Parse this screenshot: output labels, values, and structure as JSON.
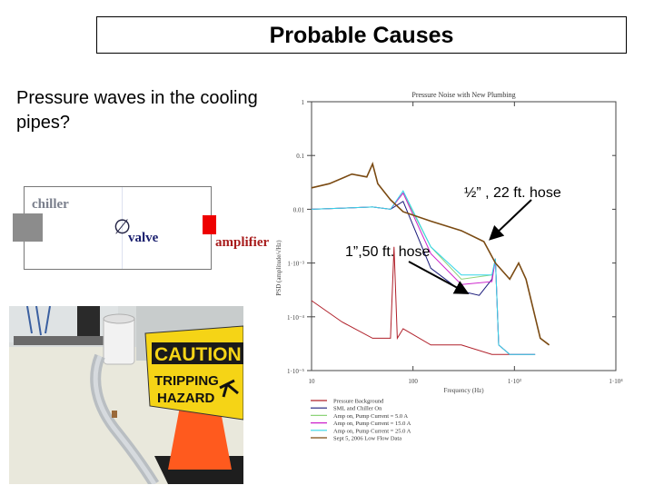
{
  "slide": {
    "title": "Probable Causes",
    "subtitle": "Pressure waves in the cooling pipes?"
  },
  "diagram": {
    "chiller_label": "chiller",
    "valve_label": "valve",
    "valve_symbol": "∅",
    "amplifier_label": "amplifier",
    "colors": {
      "chiller": "#8c8c8c",
      "amplifier": "#ee0000"
    }
  },
  "photo": {
    "sign_header": "CAUTION",
    "sign_line1": "TRIPPING",
    "sign_line2": "HAZARD"
  },
  "annotations": {
    "half_inch": "½” , 22 ft. hose",
    "one_inch": "1”,50 ft. hose"
  },
  "chart_data": {
    "type": "line",
    "title": "Pressure Noise with New Plumbing",
    "xlabel": "Frequency (Hz)",
    "ylabel": "PSD (amplitude/√Hz)",
    "xscale": "log",
    "yscale": "log",
    "xlim": [
      10,
      10000
    ],
    "ylim": [
      1e-05,
      1
    ],
    "x_ticks": [
      "10",
      "100",
      "1·10³",
      "1·10⁴"
    ],
    "y_ticks": [
      "1",
      "0.1",
      "0.01",
      "1·10⁻³",
      "1·10⁻⁴",
      "1·10⁻⁵"
    ],
    "legend_position": "below",
    "series": [
      {
        "name": "Pressure Background",
        "color": "#b0202a",
        "x": [
          10,
          20,
          40,
          60,
          65,
          70,
          80,
          150,
          300,
          600,
          900
        ],
        "y": [
          0.0002,
          8e-05,
          4e-05,
          4e-05,
          0.002,
          4e-05,
          6e-05,
          3e-05,
          3e-05,
          2e-05,
          2e-05
        ]
      },
      {
        "name": "SML and Chiller On",
        "color": "#1a1a7a",
        "x": [
          10,
          40,
          60,
          80,
          150,
          300,
          450,
          600,
          650,
          700,
          900,
          1600
        ],
        "y": [
          0.01,
          0.011,
          0.01,
          0.014,
          0.0008,
          0.0003,
          0.00025,
          0.0005,
          0.0012,
          3e-05,
          2e-05,
          2e-05
        ]
      },
      {
        "name": "Amp on, Pump Current = 5.0 A",
        "color": "#8ed47a",
        "x": [
          10,
          40,
          60,
          80,
          150,
          300,
          600,
          650,
          700,
          900,
          1600
        ],
        "y": [
          0.01,
          0.011,
          0.01,
          0.02,
          0.002,
          0.0005,
          0.0006,
          0.0012,
          3e-05,
          2e-05,
          2e-05
        ]
      },
      {
        "name": "Amp on, Pump Current = 15.0 A",
        "color": "#cc22cc",
        "x": [
          10,
          40,
          60,
          80,
          150,
          300,
          600,
          650,
          700,
          900,
          1600
        ],
        "y": [
          0.01,
          0.011,
          0.01,
          0.02,
          0.0015,
          0.0004,
          0.00045,
          0.0012,
          3e-05,
          2e-05,
          2e-05
        ]
      },
      {
        "name": "Amp on, Pump Current = 25.0 A",
        "color": "#33d6e8",
        "x": [
          10,
          40,
          60,
          80,
          150,
          300,
          600,
          650,
          700,
          900,
          1600
        ],
        "y": [
          0.01,
          0.011,
          0.01,
          0.022,
          0.002,
          0.0006,
          0.0006,
          0.0012,
          3e-05,
          2e-05,
          2e-05
        ]
      },
      {
        "name": "Sept 5, 2006 Low Flow Data",
        "color": "#7a4a12",
        "x": [
          10,
          15,
          25,
          35,
          40,
          45,
          60,
          80,
          150,
          300,
          500,
          650,
          900,
          1100,
          1300,
          1800,
          2200
        ],
        "y": [
          0.025,
          0.03,
          0.045,
          0.04,
          0.07,
          0.03,
          0.015,
          0.009,
          0.006,
          0.004,
          0.0025,
          0.001,
          0.0005,
          0.001,
          0.0005,
          4e-05,
          3e-05
        ]
      }
    ]
  }
}
